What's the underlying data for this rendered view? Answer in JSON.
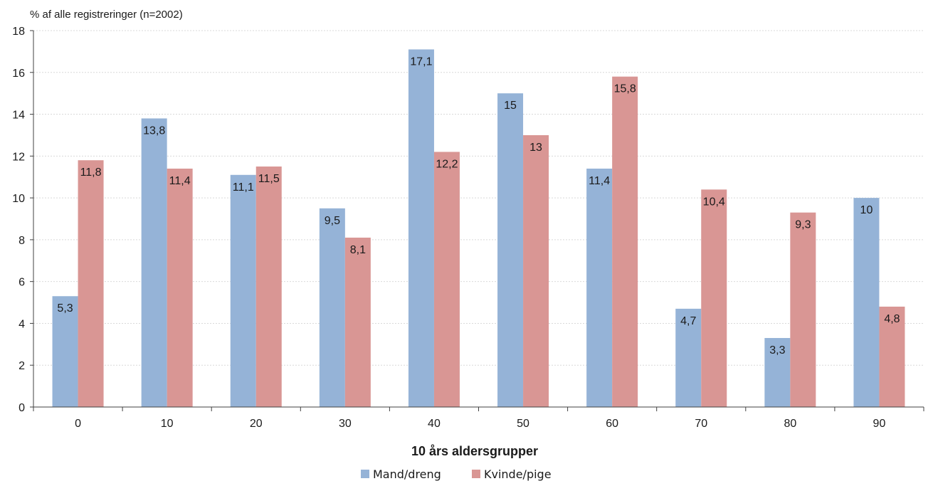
{
  "chart_data": {
    "type": "bar",
    "title": "",
    "ylabel": "% af alle registreringer (n=2002)",
    "xlabel": "10 års aldersgrupper",
    "categories": [
      "0",
      "10",
      "20",
      "30",
      "40",
      "50",
      "60",
      "70",
      "80",
      "90"
    ],
    "ylim": [
      0,
      18
    ],
    "yticks": [
      0,
      2,
      4,
      6,
      8,
      10,
      12,
      14,
      16,
      18
    ],
    "grid": true,
    "legend_position": "bottom",
    "series": [
      {
        "name": "Mand/dreng",
        "color": "#95b3d7",
        "values": [
          5.3,
          13.8,
          11.1,
          9.5,
          17.1,
          15,
          11.4,
          4.7,
          3.3,
          10
        ],
        "labels": [
          "5,3",
          "13,8",
          "11,1",
          "9,5",
          "17,1",
          "15",
          "11,4",
          "4,7",
          "3,3",
          "10"
        ]
      },
      {
        "name": "Kvinde/pige",
        "color": "#d99694",
        "values": [
          11.8,
          11.4,
          11.5,
          8.1,
          12.2,
          13,
          15.8,
          10.4,
          9.3,
          4.8
        ],
        "labels": [
          "11,8",
          "11,4",
          "11,5",
          "8,1",
          "12,2",
          "13",
          "15,8",
          "10,4",
          "9,3",
          "4,8"
        ]
      }
    ]
  }
}
